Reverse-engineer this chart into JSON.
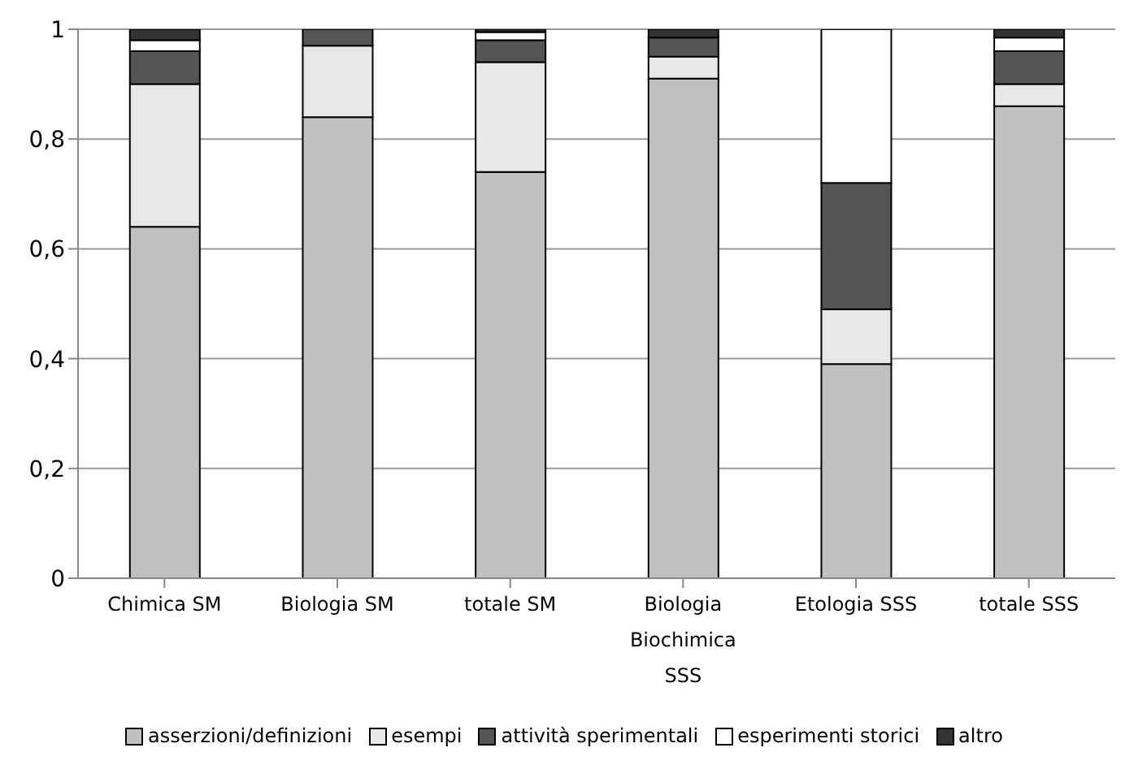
{
  "chart_data": {
    "type": "bar",
    "stacked": true,
    "categories": [
      "Chimica SM",
      "Biologia SM",
      "totale SM",
      "Biologia Biochimica SSS",
      "Etologia SSS",
      "totale SSS"
    ],
    "series": [
      {
        "name": "asserzioni/definizioni",
        "color": "#c0c0c0",
        "values": [
          0.64,
          0.84,
          0.74,
          0.91,
          0.39,
          0.86
        ]
      },
      {
        "name": "esempi",
        "color": "#e8e8e8",
        "values": [
          0.26,
          0.13,
          0.2,
          0.04,
          0.1,
          0.04
        ]
      },
      {
        "name": "attività sperimentali",
        "color": "#555555",
        "values": [
          0.06,
          0.03,
          0.04,
          0.035,
          0.23,
          0.06
        ]
      },
      {
        "name": "esperimenti storici",
        "color": "#ffffff",
        "values": [
          0.02,
          0,
          0.015,
          0,
          0.28,
          0.025
        ]
      },
      {
        "name": "altro",
        "color": "#333333",
        "values": [
          0.02,
          0,
          0.005,
          0.015,
          0,
          0.015
        ]
      }
    ],
    "ylim": [
      0,
      1
    ],
    "yticks": [
      0,
      {
        "value": 0.2,
        "label": "0,2"
      },
      {
        "value": 0.4,
        "label": "0,4"
      },
      {
        "value": 0.6,
        "label": "0,6"
      },
      {
        "value": 0.8,
        "label": "0,8"
      },
      1
    ],
    "grid": "y",
    "legend": "bottom"
  }
}
